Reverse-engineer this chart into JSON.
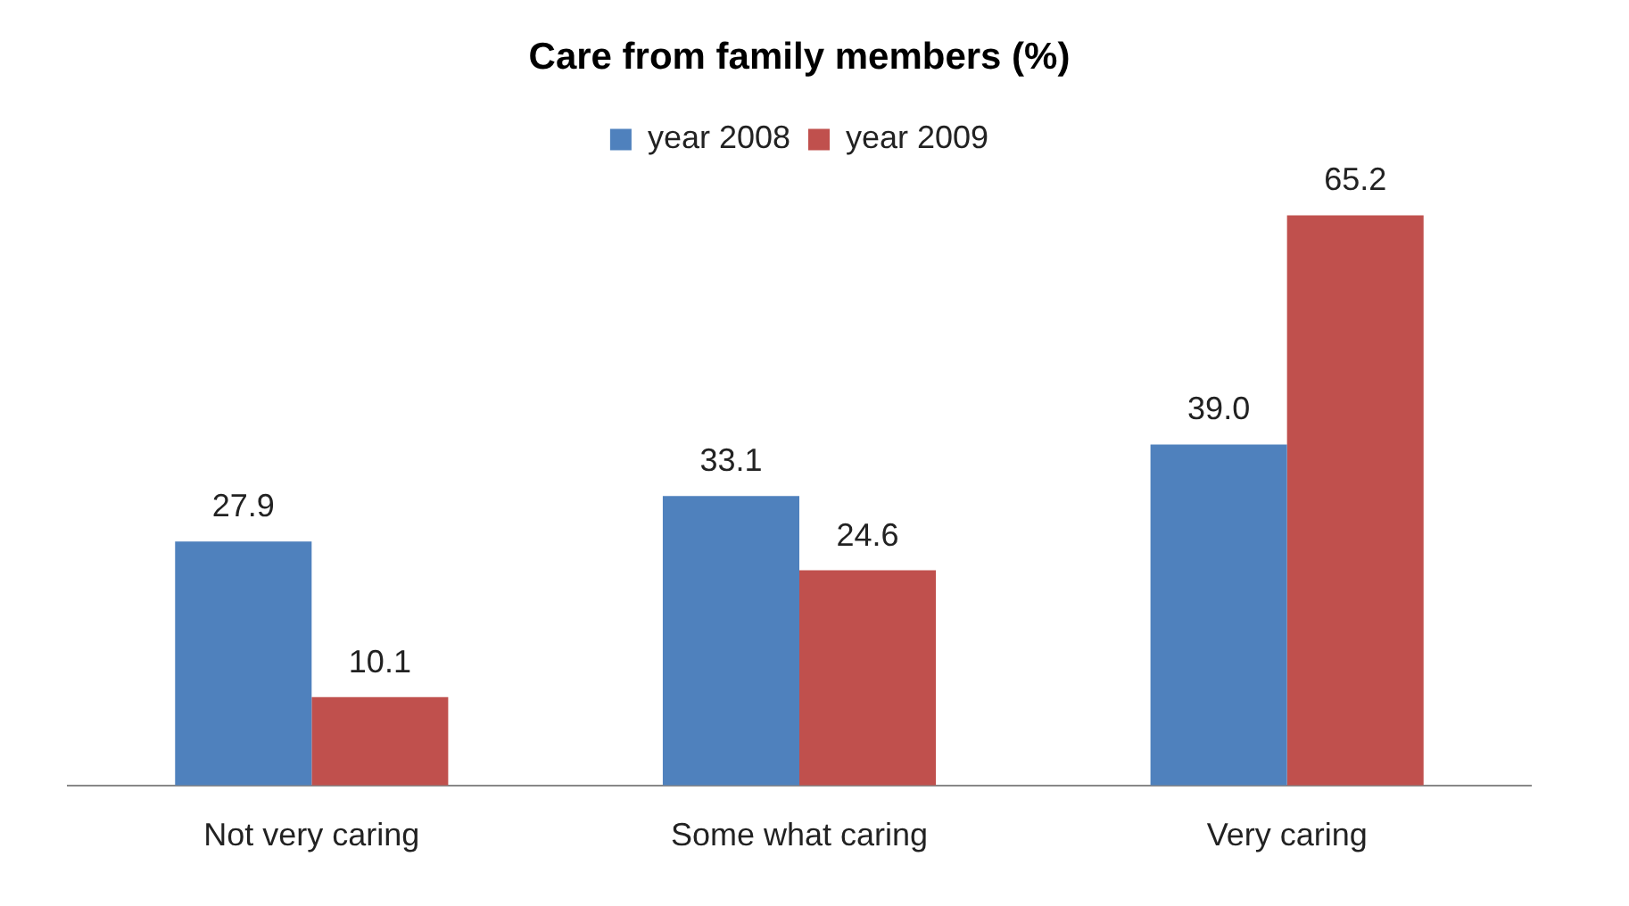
{
  "chart_data": {
    "type": "bar",
    "title": "Care from family members (%)",
    "categories": [
      "Not very caring",
      "Some what caring",
      "Very caring"
    ],
    "series": [
      {
        "name": "year 2008",
        "color": "#4f81bd",
        "values": [
          27.9,
          33.1,
          39.0
        ],
        "value_labels": [
          "27.9",
          "33.1",
          "39.0"
        ]
      },
      {
        "name": "year 2009",
        "color": "#c0504d",
        "values": [
          10.1,
          24.6,
          65.2
        ],
        "value_labels": [
          "10.1",
          "24.6",
          "65.2"
        ]
      }
    ],
    "legend": "top",
    "grid": false,
    "tick_labels": "x"
  }
}
